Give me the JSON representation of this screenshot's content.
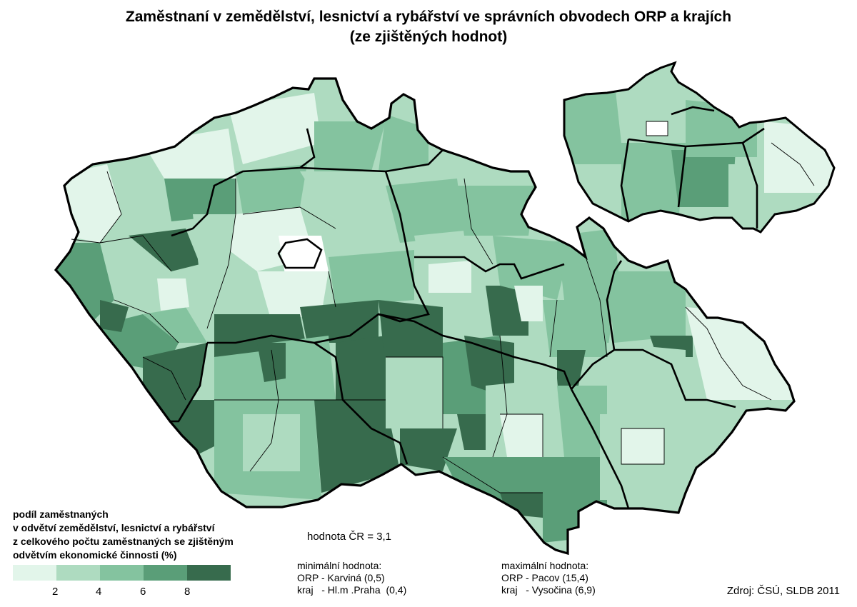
{
  "title_line1": "Zaměstnaní v zemědělství, lesnictví a rybářství ve správních obvodech ORP a krajích",
  "title_line2": "(ze zjištěných hodnot)",
  "colors": {
    "class1": "#e2f5ea",
    "class2": "#aedbc0",
    "class3": "#84c39f",
    "class4": "#5a9e78",
    "class5": "#376b4d",
    "border": "#000000"
  },
  "legend": {
    "title_lines": [
      "podíl zaměstnaných",
      "v odvětví zemědělství, lesnictví a rybářství",
      "z celkového počtu zaměstnaných se zjištěným",
      "odvětvím ekonomické činnosti (%)"
    ],
    "breaks": [
      "2",
      "4",
      "6",
      "8"
    ]
  },
  "country_value": "hodnota ČR = 3,1",
  "minimum": {
    "label": "minimální hodnota:",
    "orp": "ORP - Karviná (0,5)",
    "kraj": "kraj   - Hl.m .Praha  (0,4)"
  },
  "maximum": {
    "label": "maximální hodnota:",
    "orp": "ORP - Pacov (15,4)",
    "kraj": "kraj   - Vysočina (6,9)"
  },
  "source": "Zdroj: ČSÚ, SLDB 2011"
}
